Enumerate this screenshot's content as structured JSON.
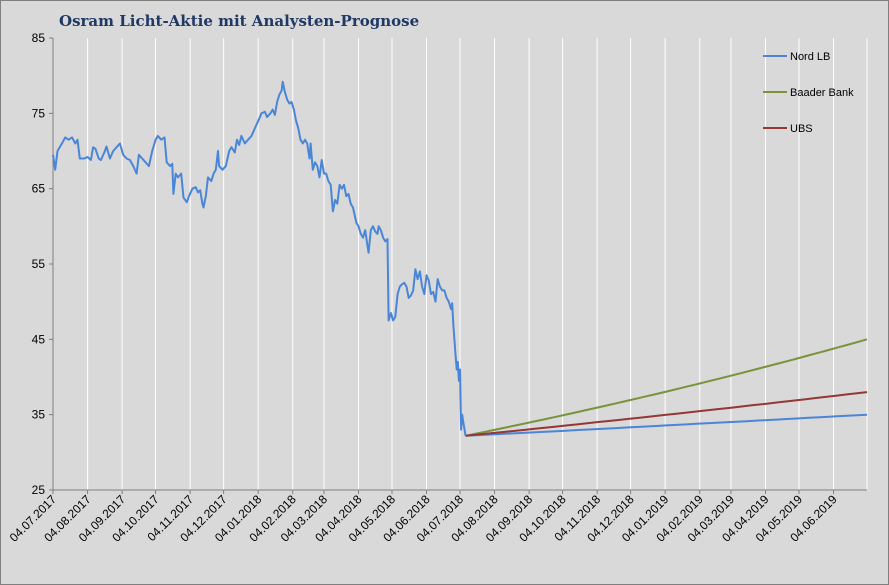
{
  "chart_data": {
    "type": "line",
    "title": "Osram Licht-Aktie mit Analysten-Prognose",
    "xlabel": "",
    "ylabel": "",
    "ylim": [
      25,
      85
    ],
    "yticks": [
      25,
      35,
      45,
      55,
      65,
      75,
      85
    ],
    "xticks": [
      "04.07.2017",
      "04.08.2017",
      "04.09.2017",
      "04.10.2017",
      "04.11.2017",
      "04.12.2017",
      "04.01.2018",
      "04.02.2018",
      "04.03.2018",
      "04.04.2018",
      "04.05.2018",
      "04.06.2018",
      "04.07.2018",
      "04.08.2018",
      "04.09.2018",
      "04.10.2018",
      "04.11.2018",
      "04.12.2018",
      "04.01.2019",
      "04.02.2019",
      "04.03.2019",
      "04.04.2019",
      "04.05.2019",
      "04.06.2019"
    ],
    "x_range": [
      "2017-07-04",
      "2019-07-04"
    ],
    "grid": "vertical",
    "legend_position": "right",
    "history": {
      "color": "#4a86d8",
      "points": [
        [
          "2017-07-04",
          69.5
        ],
        [
          "2017-07-06",
          67.5
        ],
        [
          "2017-07-08",
          70.0
        ],
        [
          "2017-07-12",
          71.0
        ],
        [
          "2017-07-15",
          71.8
        ],
        [
          "2017-07-18",
          71.5
        ],
        [
          "2017-07-21",
          71.8
        ],
        [
          "2017-07-24",
          71.0
        ],
        [
          "2017-07-26",
          71.5
        ],
        [
          "2017-07-28",
          69.0
        ],
        [
          "2017-08-01",
          69.0
        ],
        [
          "2017-08-04",
          69.2
        ],
        [
          "2017-08-07",
          68.8
        ],
        [
          "2017-08-09",
          70.5
        ],
        [
          "2017-08-11",
          70.3
        ],
        [
          "2017-08-14",
          69.0
        ],
        [
          "2017-08-16",
          68.8
        ],
        [
          "2017-08-19",
          69.8
        ],
        [
          "2017-08-21",
          70.6
        ],
        [
          "2017-08-24",
          69.0
        ],
        [
          "2017-08-27",
          70.0
        ],
        [
          "2017-08-30",
          70.5
        ],
        [
          "2017-09-02",
          71.0
        ],
        [
          "2017-09-05",
          69.5
        ],
        [
          "2017-09-08",
          69.0
        ],
        [
          "2017-09-11",
          68.8
        ],
        [
          "2017-09-14",
          68.0
        ],
        [
          "2017-09-17",
          67.0
        ],
        [
          "2017-09-19",
          69.5
        ],
        [
          "2017-09-22",
          69.0
        ],
        [
          "2017-09-25",
          68.5
        ],
        [
          "2017-09-28",
          68.0
        ],
        [
          "2017-10-01",
          70.0
        ],
        [
          "2017-10-04",
          71.5
        ],
        [
          "2017-10-06",
          72.0
        ],
        [
          "2017-10-09",
          71.5
        ],
        [
          "2017-10-12",
          71.8
        ],
        [
          "2017-10-14",
          68.5
        ],
        [
          "2017-10-17",
          68.0
        ],
        [
          "2017-10-19",
          68.3
        ],
        [
          "2017-10-20",
          64.3
        ],
        [
          "2017-10-22",
          67.0
        ],
        [
          "2017-10-24",
          66.5
        ],
        [
          "2017-10-27",
          67.0
        ],
        [
          "2017-10-29",
          63.8
        ],
        [
          "2017-11-01",
          63.2
        ],
        [
          "2017-11-03",
          64.0
        ],
        [
          "2017-11-06",
          65.0
        ],
        [
          "2017-11-09",
          65.2
        ],
        [
          "2017-11-11",
          64.5
        ],
        [
          "2017-11-13",
          64.8
        ],
        [
          "2017-11-15",
          63.0
        ],
        [
          "2017-11-16",
          62.5
        ],
        [
          "2017-11-18",
          64.0
        ],
        [
          "2017-11-20",
          66.5
        ],
        [
          "2017-11-23",
          66.0
        ],
        [
          "2017-11-25",
          67.0
        ],
        [
          "2017-11-27",
          67.5
        ],
        [
          "2017-11-29",
          70.0
        ],
        [
          "2017-11-30",
          68.0
        ],
        [
          "2017-12-03",
          67.5
        ],
        [
          "2017-12-06",
          68.0
        ],
        [
          "2017-12-09",
          70.0
        ],
        [
          "2017-12-11",
          70.5
        ],
        [
          "2017-12-14",
          69.8
        ],
        [
          "2017-12-16",
          71.5
        ],
        [
          "2017-12-18",
          70.8
        ],
        [
          "2017-12-20",
          72.0
        ],
        [
          "2017-12-23",
          71.0
        ],
        [
          "2017-12-26",
          71.5
        ],
        [
          "2017-12-29",
          72.0
        ],
        [
          "2018-01-01",
          73.0
        ],
        [
          "2018-01-04",
          74.0
        ],
        [
          "2018-01-07",
          75.0
        ],
        [
          "2018-01-10",
          75.2
        ],
        [
          "2018-01-12",
          74.5
        ],
        [
          "2018-01-15",
          75.0
        ],
        [
          "2018-01-17",
          75.5
        ],
        [
          "2018-01-19",
          74.8
        ],
        [
          "2018-01-21",
          76.5
        ],
        [
          "2018-01-23",
          77.5
        ],
        [
          "2018-01-25",
          78.0
        ],
        [
          "2018-01-26",
          79.2
        ],
        [
          "2018-01-28",
          77.8
        ],
        [
          "2018-01-30",
          76.8
        ],
        [
          "2018-02-01",
          76.3
        ],
        [
          "2018-02-03",
          76.5
        ],
        [
          "2018-02-05",
          75.5
        ],
        [
          "2018-02-07",
          74.0
        ],
        [
          "2018-02-09",
          73.0
        ],
        [
          "2018-02-11",
          71.5
        ],
        [
          "2018-02-13",
          71.0
        ],
        [
          "2018-02-15",
          71.5
        ],
        [
          "2018-02-17",
          71.0
        ],
        [
          "2018-02-19",
          69.0
        ],
        [
          "2018-02-20",
          71.0
        ],
        [
          "2018-02-22",
          67.5
        ],
        [
          "2018-02-24",
          68.5
        ],
        [
          "2018-02-26",
          68.0
        ],
        [
          "2018-02-28",
          66.5
        ],
        [
          "2018-03-02",
          68.8
        ],
        [
          "2018-03-04",
          67.0
        ],
        [
          "2018-03-06",
          67.0
        ],
        [
          "2018-03-08",
          66.0
        ],
        [
          "2018-03-10",
          65.5
        ],
        [
          "2018-03-12",
          62.0
        ],
        [
          "2018-03-14",
          63.5
        ],
        [
          "2018-03-16",
          63.0
        ],
        [
          "2018-03-18",
          65.5
        ],
        [
          "2018-03-20",
          65.0
        ],
        [
          "2018-03-22",
          65.5
        ],
        [
          "2018-03-24",
          64.0
        ],
        [
          "2018-03-26",
          64.3
        ],
        [
          "2018-03-28",
          63.0
        ],
        [
          "2018-03-30",
          62.5
        ],
        [
          "2018-04-02",
          60.5
        ],
        [
          "2018-04-04",
          60.0
        ],
        [
          "2018-04-06",
          59.0
        ],
        [
          "2018-04-08",
          58.5
        ],
        [
          "2018-04-10",
          59.5
        ],
        [
          "2018-04-12",
          57.5
        ],
        [
          "2018-04-13",
          56.5
        ],
        [
          "2018-04-15",
          59.5
        ],
        [
          "2018-04-17",
          60.0
        ],
        [
          "2018-04-19",
          59.3
        ],
        [
          "2018-04-21",
          59.0
        ],
        [
          "2018-04-22",
          60.0
        ],
        [
          "2018-04-24",
          59.5
        ],
        [
          "2018-04-26",
          58.5
        ],
        [
          "2018-04-28",
          58.0
        ],
        [
          "2018-04-30",
          58.3
        ],
        [
          "2018-05-01",
          47.5
        ],
        [
          "2018-05-03",
          48.5
        ],
        [
          "2018-05-05",
          47.5
        ],
        [
          "2018-05-07",
          48.0
        ],
        [
          "2018-05-09",
          51.0
        ],
        [
          "2018-05-11",
          52.0
        ],
        [
          "2018-05-13",
          52.3
        ],
        [
          "2018-05-15",
          52.5
        ],
        [
          "2018-05-17",
          52.0
        ],
        [
          "2018-05-19",
          50.5
        ],
        [
          "2018-05-21",
          50.8
        ],
        [
          "2018-05-23",
          51.5
        ],
        [
          "2018-05-25",
          54.3
        ],
        [
          "2018-05-27",
          53.0
        ],
        [
          "2018-05-29",
          54.0
        ],
        [
          "2018-05-31",
          52.0
        ],
        [
          "2018-06-02",
          51.0
        ],
        [
          "2018-06-04",
          53.5
        ],
        [
          "2018-06-06",
          52.8
        ],
        [
          "2018-06-08",
          51.0
        ],
        [
          "2018-06-10",
          51.3
        ],
        [
          "2018-06-12",
          50.0
        ],
        [
          "2018-06-14",
          53.0
        ],
        [
          "2018-06-16",
          52.0
        ],
        [
          "2018-06-18",
          51.5
        ],
        [
          "2018-06-20",
          51.5
        ],
        [
          "2018-06-22",
          50.5
        ],
        [
          "2018-06-24",
          50.0
        ],
        [
          "2018-06-26",
          49.0
        ],
        [
          "2018-06-27",
          49.8
        ],
        [
          "2018-06-28",
          47.0
        ],
        [
          "2018-06-29",
          45.0
        ],
        [
          "2018-06-30",
          43.0
        ],
        [
          "2018-07-01",
          41.0
        ],
        [
          "2018-07-02",
          42.0
        ],
        [
          "2018-07-03",
          39.5
        ],
        [
          "2018-07-04",
          41.0
        ],
        [
          "2018-07-05",
          33.0
        ],
        [
          "2018-07-06",
          35.0
        ],
        [
          "2018-07-07",
          34.0
        ],
        [
          "2018-07-09",
          32.2
        ]
      ]
    },
    "series": [
      {
        "name": "Nord LB",
        "color": "#4a86d8",
        "start": [
          "2018-07-09",
          32.2
        ],
        "end": [
          "2019-07-04",
          35.0
        ]
      },
      {
        "name": "Baader Bank",
        "color": "#77933c",
        "start": [
          "2018-07-09",
          32.2
        ],
        "end": [
          "2019-07-04",
          45.0
        ]
      },
      {
        "name": "UBS",
        "color": "#953735",
        "start": [
          "2018-07-09",
          32.2
        ],
        "end": [
          "2019-07-04",
          38.0
        ]
      }
    ]
  }
}
